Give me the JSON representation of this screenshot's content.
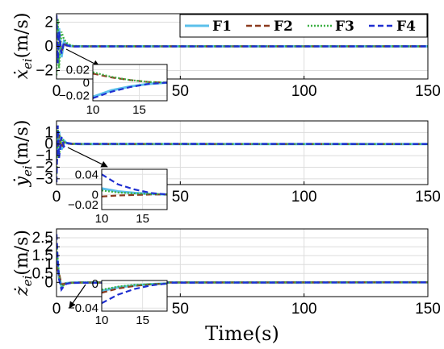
{
  "chart_data": [
    {
      "type": "line",
      "ylabel_main": "ẋ",
      "ylabel_sub": "ei",
      "ylabel_unit": "(m/s)",
      "xlabel": "Time(s)",
      "xlim": [
        0,
        150
      ],
      "ylim": [
        -2.7,
        2.7
      ],
      "xticks": [
        0,
        50,
        100,
        150
      ],
      "yticks": [
        -2,
        0,
        2
      ],
      "grid": true,
      "legend": {
        "placement": "top-right",
        "entries": [
          "F1",
          "F2",
          "F3",
          "F4"
        ]
      },
      "series": [
        {
          "name": "F1",
          "color": "#5bc0eb",
          "dash": "solid",
          "x": [
            0,
            1,
            2,
            3,
            4,
            6,
            10,
            150
          ],
          "y": [
            0.6,
            1.5,
            -0.9,
            0.4,
            0.15,
            0.02,
            0,
            0
          ]
        },
        {
          "name": "F2",
          "color": "#8b3a1e",
          "dash": "dashed",
          "x": [
            0,
            1,
            2,
            3,
            4,
            6,
            10,
            150
          ],
          "y": [
            -0.8,
            0.9,
            -0.4,
            0.2,
            0.08,
            0.01,
            0,
            0
          ]
        },
        {
          "name": "F3",
          "color": "#3cb043",
          "dash": "dotted",
          "x": [
            0,
            0.5,
            1,
            2,
            3,
            4,
            6,
            10,
            150
          ],
          "y": [
            -2.4,
            2.3,
            -1.8,
            1.2,
            0.6,
            0.3,
            0.05,
            0.01,
            0
          ]
        },
        {
          "name": "F4",
          "color": "#1f2fd1",
          "dash": "dashed",
          "x": [
            0,
            0.5,
            1,
            2,
            3,
            4,
            6,
            10,
            150
          ],
          "y": [
            2.6,
            -1.4,
            1.2,
            -0.6,
            0.3,
            0.1,
            -0.02,
            -0.01,
            0
          ]
        }
      ],
      "inset": {
        "xlim": [
          10,
          18
        ],
        "ylim": [
          -0.028,
          0.028
        ],
        "xticks": [
          10,
          15
        ],
        "yticks": [
          -0.02,
          0,
          0.02
        ],
        "series": [
          {
            "name": "F1",
            "x": [
              10,
              12,
              14,
              16,
              18
            ],
            "y": [
              -0.022,
              -0.012,
              -0.006,
              -0.002,
              0
            ]
          },
          {
            "name": "F2",
            "x": [
              10,
              12,
              14,
              16,
              18
            ],
            "y": [
              0.014,
              0.008,
              0.004,
              0.001,
              0
            ]
          },
          {
            "name": "F3",
            "x": [
              10,
              12,
              14,
              16,
              18
            ],
            "y": [
              0.016,
              0.009,
              0.004,
              0.001,
              0
            ]
          },
          {
            "name": "F4",
            "x": [
              10,
              12,
              14,
              16,
              18
            ],
            "y": [
              -0.024,
              -0.014,
              -0.007,
              -0.002,
              0
            ]
          }
        ]
      }
    },
    {
      "type": "line",
      "ylabel_main": "ẏ",
      "ylabel_sub": "ei",
      "ylabel_unit": "(m/s)",
      "xlabel": "Time(s)",
      "xlim": [
        0,
        150
      ],
      "ylim": [
        -3.5,
        2.0
      ],
      "xticks": [
        0,
        50,
        100,
        150
      ],
      "yticks": [
        -3,
        -2,
        -1,
        0,
        1
      ],
      "grid": true,
      "series": [
        {
          "name": "F1",
          "color": "#5bc0eb",
          "dash": "solid",
          "x": [
            0,
            1,
            2,
            3,
            4,
            6,
            10,
            150
          ],
          "y": [
            -1.2,
            1.1,
            -0.5,
            0.3,
            0.1,
            0.02,
            0,
            0
          ]
        },
        {
          "name": "F2",
          "color": "#8b3a1e",
          "dash": "dashed",
          "x": [
            0,
            1,
            2,
            3,
            4,
            6,
            10,
            150
          ],
          "y": [
            -1.8,
            0.8,
            -0.3,
            0.15,
            0.05,
            0.01,
            0,
            0
          ]
        },
        {
          "name": "F3",
          "color": "#3cb043",
          "dash": "dotted",
          "x": [
            0,
            0.5,
            1,
            2,
            3,
            4,
            6,
            10,
            150
          ],
          "y": [
            -2.6,
            1.4,
            -1.0,
            0.5,
            0.2,
            0.08,
            0.02,
            0.01,
            0
          ]
        },
        {
          "name": "F4",
          "color": "#1f2fd1",
          "dash": "dashed",
          "x": [
            0,
            0.5,
            1,
            2,
            3,
            4,
            6,
            10,
            150
          ],
          "y": [
            -3.3,
            1.6,
            -1.2,
            0.6,
            -0.2,
            0.1,
            0.03,
            0.02,
            0
          ]
        }
      ],
      "inset": {
        "xlim": [
          10,
          18
        ],
        "ylim": [
          -0.03,
          0.05
        ],
        "xticks": [
          10,
          15
        ],
        "yticks": [
          -0.02,
          0,
          0.04
        ],
        "series": [
          {
            "name": "F1",
            "x": [
              10,
              12,
              14,
              16,
              18
            ],
            "y": [
              0.012,
              0.006,
              0.003,
              0.001,
              0
            ]
          },
          {
            "name": "F2",
            "x": [
              10,
              12,
              14,
              16,
              18
            ],
            "y": [
              -0.004,
              -0.002,
              -0.001,
              0,
              0
            ]
          },
          {
            "name": "F3",
            "x": [
              10,
              12,
              14,
              16,
              18
            ],
            "y": [
              0.008,
              0.004,
              0.002,
              0.001,
              0
            ]
          },
          {
            "name": "F4",
            "x": [
              10,
              12,
              14,
              16,
              18
            ],
            "y": [
              0.04,
              0.02,
              0.01,
              0.003,
              0
            ]
          }
        ]
      }
    },
    {
      "type": "line",
      "ylabel_main": "ż",
      "ylabel_sub": "ei",
      "ylabel_unit": "(m/s)",
      "xlabel": "Time(s)",
      "xlim": [
        0,
        150
      ],
      "ylim": [
        -0.8,
        3.0
      ],
      "xticks": [
        0,
        50,
        100,
        150
      ],
      "yticks": [
        0,
        0.5,
        1,
        1.5,
        2,
        2.5
      ],
      "grid": true,
      "series": [
        {
          "name": "F1",
          "color": "#5bc0eb",
          "dash": "solid",
          "x": [
            0,
            1,
            2,
            3,
            4,
            6,
            10,
            150
          ],
          "y": [
            1.6,
            0.3,
            -0.2,
            -0.1,
            -0.05,
            -0.02,
            -0.01,
            0
          ]
        },
        {
          "name": "F2",
          "color": "#8b3a1e",
          "dash": "dashed",
          "x": [
            0,
            1,
            2,
            3,
            4,
            6,
            10,
            150
          ],
          "y": [
            0.9,
            0.5,
            -0.1,
            -0.1,
            -0.04,
            -0.02,
            -0.01,
            0
          ]
        },
        {
          "name": "F3",
          "color": "#3cb043",
          "dash": "dotted",
          "x": [
            0,
            1,
            2,
            3,
            4,
            6,
            10,
            150
          ],
          "y": [
            2.1,
            0.4,
            -0.3,
            -0.15,
            -0.06,
            -0.02,
            -0.01,
            0
          ]
        },
        {
          "name": "F4",
          "color": "#1f2fd1",
          "dash": "dashed",
          "x": [
            0,
            0.5,
            1,
            2,
            3,
            4,
            6,
            10,
            150
          ],
          "y": [
            2.7,
            1.2,
            0.2,
            -0.4,
            -0.2,
            -0.08,
            -0.03,
            -0.02,
            0
          ]
        }
      ],
      "inset": {
        "xlim": [
          10,
          18
        ],
        "ylim": [
          -0.045,
          0.005
        ],
        "xticks": [
          10,
          15
        ],
        "yticks": [
          -0.04,
          0
        ],
        "series": [
          {
            "name": "F1",
            "x": [
              10,
              12,
              14,
              16,
              18
            ],
            "y": [
              -0.012,
              -0.006,
              -0.003,
              -0.001,
              0
            ]
          },
          {
            "name": "F2",
            "x": [
              10,
              12,
              14,
              16,
              18
            ],
            "y": [
              -0.015,
              -0.008,
              -0.004,
              -0.001,
              0
            ]
          },
          {
            "name": "F3",
            "x": [
              10,
              12,
              14,
              16,
              18
            ],
            "y": [
              -0.01,
              -0.005,
              -0.002,
              -0.001,
              0
            ]
          },
          {
            "name": "F4",
            "x": [
              10,
              12,
              14,
              16,
              18
            ],
            "y": [
              -0.032,
              -0.018,
              -0.009,
              -0.003,
              0
            ]
          }
        ]
      }
    }
  ]
}
